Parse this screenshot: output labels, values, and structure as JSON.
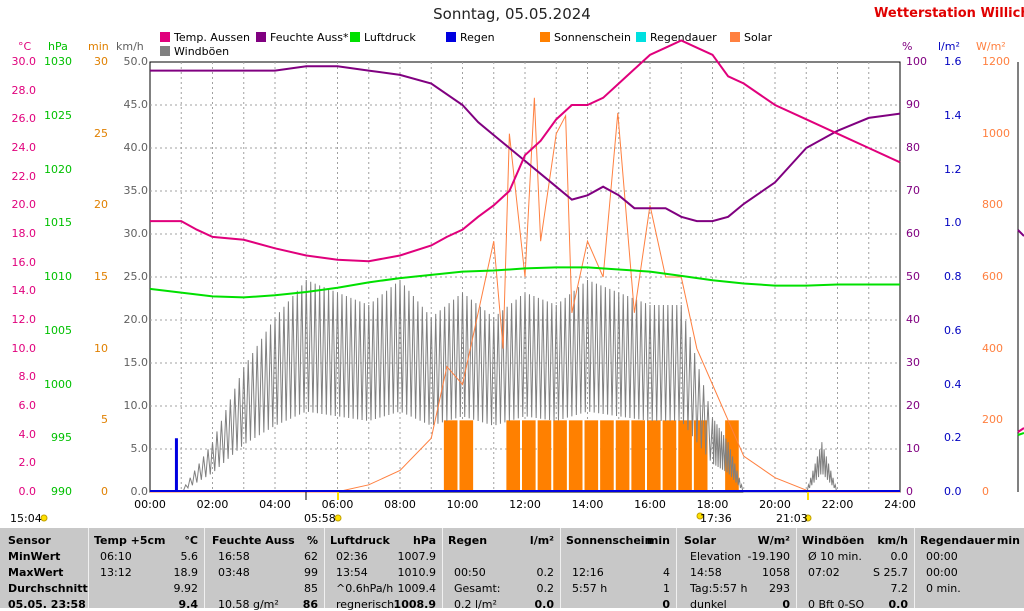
{
  "title": "Sonntag, 05.05.2024",
  "brand": "Wetterstation Willich",
  "legend": [
    {
      "label": "Temp. Aussen",
      "color": "#e0007c"
    },
    {
      "label": "Feuchte Auss*",
      "color": "#800080"
    },
    {
      "label": "Luftdruck",
      "color": "#00e000"
    },
    {
      "label": "Regen",
      "color": "#0000e0"
    },
    {
      "label": "Sonnenschein",
      "color": "#ff8000"
    },
    {
      "label": "Regendauer",
      "color": "#00e0e0"
    },
    {
      "label": "Solar",
      "color": "#ff8040"
    },
    {
      "label": "Windböen",
      "color": "#808080"
    }
  ],
  "axis_units": {
    "temp": "°C",
    "pressure": "hPa",
    "minutes": "min",
    "wind": "km/h",
    "humidity": "%",
    "rain": "l/m²",
    "solar": "W/m²"
  },
  "axis_ticks": {
    "temp": [
      "30.0",
      "28.0",
      "26.0",
      "24.0",
      "22.0",
      "20.0",
      "18.0",
      "16.0",
      "14.0",
      "12.0",
      "10.0",
      "8.0",
      "6.0",
      "4.0",
      "2.0",
      "0.0"
    ],
    "pressure": [
      "1030",
      "1025",
      "1020",
      "1015",
      "1010",
      "1005",
      "1000",
      "995",
      "990"
    ],
    "minutes": [
      "30",
      "25",
      "20",
      "15",
      "10",
      "5",
      "0"
    ],
    "wind": [
      "50.0",
      "45.0",
      "40.0",
      "35.0",
      "30.0",
      "25.0",
      "20.0",
      "15.0",
      "10.0",
      "5.0",
      "0.0"
    ],
    "humidity": [
      "100",
      "90",
      "80",
      "70",
      "60",
      "50",
      "40",
      "30",
      "20",
      "10",
      "0"
    ],
    "rain": [
      "1.6",
      "1.4",
      "1.2",
      "1.0",
      "0.8",
      "0.6",
      "0.4",
      "0.2",
      "0.0"
    ],
    "solar": [
      "1200",
      "1000",
      "800",
      "600",
      "400",
      "200",
      "0"
    ],
    "time": [
      "00:00",
      "02:00",
      "04:00",
      "06:00",
      "08:00",
      "10:00",
      "12:00",
      "14:00",
      "16:00",
      "18:00",
      "20:00",
      "22:00",
      "24:00"
    ]
  },
  "sun_events": {
    "prev_day_time": "15:04",
    "sunrise": "05:58",
    "noon_marker": "17:36",
    "sunset": "21:03"
  },
  "colors": {
    "temp": "#e0007c",
    "humidity": "#800080",
    "pressure": "#00e000",
    "rain": "#0000e0",
    "sunshine": "#ff8000",
    "raindur": "#00e0e0",
    "solar": "#ff8040",
    "wind": "#808080",
    "grid": "#a0a0a0",
    "temp_axis": "#e0007c",
    "pressure_axis": "#00c000",
    "minutes_axis": "#e08000",
    "wind_axis": "#606060",
    "humidity_axis": "#800080",
    "rain_axis": "#0000c0",
    "solar_axis": "#ff8040"
  },
  "chart_data": {
    "type": "line",
    "title": "Sonntag, 05.05.2024",
    "x_unit": "hours",
    "xlim": [
      0,
      24
    ],
    "series": [
      {
        "name": "Temp. Aussen",
        "axis": "temp",
        "ylim": [
          0,
          30
        ],
        "x": [
          0,
          1,
          1.5,
          2,
          3,
          4,
          5,
          6,
          7,
          8,
          9,
          9.5,
          10,
          10.5,
          11,
          11.5,
          12,
          12.5,
          13,
          13.5,
          14,
          14.5,
          15,
          15.5,
          16,
          16.5,
          17,
          17.5,
          18,
          18.5,
          19,
          20,
          21,
          22,
          23,
          24
        ],
        "y": [
          18.9,
          18.9,
          18.3,
          17.8,
          17.6,
          17.0,
          16.5,
          16.2,
          16.1,
          16.5,
          17.2,
          17.8,
          18.3,
          19.2,
          20.0,
          21.0,
          23.5,
          24.5,
          26.0,
          27.0,
          27.0,
          27.5,
          28.5,
          29.5,
          30.5,
          31.0,
          31.5,
          31.0,
          30.5,
          29.0,
          28.5,
          27.0,
          26.0,
          25.0,
          24.0,
          23.0
        ]
      },
      {
        "name": "Feuchte Auss*",
        "axis": "humidity",
        "ylim": [
          0,
          100
        ],
        "x": [
          0,
          1,
          2,
          3,
          4,
          5,
          6,
          7,
          8,
          9,
          10,
          10.5,
          11,
          11.5,
          12,
          12.5,
          13,
          13.5,
          14,
          14.5,
          15,
          15.5,
          16,
          16.5,
          17,
          17.5,
          18,
          18.5,
          19,
          20,
          21,
          22,
          23,
          24
        ],
        "y": [
          98,
          98,
          98,
          98,
          98,
          99,
          99,
          98,
          97,
          95,
          90,
          86,
          83,
          80,
          77,
          74,
          71,
          68,
          69,
          71,
          69,
          66,
          66,
          66,
          64,
          63,
          63,
          64,
          67,
          72,
          80,
          84,
          87,
          88
        ]
      },
      {
        "name": "Luftdruck",
        "axis": "pressure",
        "ylim": [
          990,
          1030
        ],
        "x": [
          0,
          2,
          3,
          4,
          5,
          6,
          7,
          8,
          9,
          10,
          11,
          12,
          13,
          14,
          15,
          16,
          17,
          18,
          19,
          20,
          21,
          22,
          23,
          24
        ],
        "y": [
          1008.9,
          1008.2,
          1008.1,
          1008.3,
          1008.6,
          1009.0,
          1009.5,
          1009.9,
          1010.2,
          1010.5,
          1010.6,
          1010.8,
          1010.9,
          1010.9,
          1010.7,
          1010.5,
          1010.1,
          1009.7,
          1009.4,
          1009.2,
          1009.2,
          1009.3,
          1009.3,
          1009.3
        ]
      },
      {
        "name": "Windböen",
        "axis": "wind",
        "ylim": [
          0,
          50
        ],
        "x": [
          0,
          1,
          2,
          3,
          4,
          5,
          6,
          7,
          8,
          9,
          10,
          11,
          12,
          13,
          14,
          15,
          16,
          17,
          18,
          18.5,
          19,
          20,
          21,
          21.5,
          22,
          23,
          24
        ],
        "y": [
          0,
          0,
          4,
          10,
          14,
          17,
          16,
          15,
          17,
          14,
          16,
          14,
          16,
          15,
          17,
          16,
          15,
          15,
          6,
          4,
          0,
          0,
          0,
          4,
          0,
          0,
          0
        ]
      },
      {
        "name": "Solar",
        "axis": "solar",
        "ylim": [
          0,
          1200
        ],
        "x": [
          0,
          5.97,
          7,
          8,
          9,
          9.5,
          10,
          10.5,
          11,
          11.3,
          11.5,
          12,
          12.3,
          12.5,
          13,
          13.3,
          13.5,
          14,
          14.5,
          14.97,
          15.5,
          16,
          16.5,
          17,
          17.5,
          18,
          18.5,
          19,
          20,
          21,
          21.05,
          24
        ],
        "y": [
          0,
          0,
          20,
          60,
          150,
          350,
          300,
          500,
          700,
          400,
          1000,
          600,
          1100,
          700,
          1000,
          1050,
          500,
          700,
          600,
          1058,
          500,
          800,
          600,
          600,
          400,
          300,
          200,
          100,
          40,
          5,
          0,
          0
        ]
      },
      {
        "name": "Regen",
        "axis": "rain",
        "ylim": [
          0,
          1.6
        ],
        "x": [
          0.83
        ],
        "y": [
          0.2
        ]
      },
      {
        "name": "Sonnenschein",
        "axis": "minutes",
        "ylim": [
          0,
          30
        ],
        "x": [
          9.5,
          10,
          11.5,
          12,
          12.5,
          13,
          13.5,
          14,
          14.5,
          15,
          15.5,
          16,
          16.5,
          17,
          17.5,
          18.5
        ],
        "y": [
          5,
          5,
          5,
          5,
          5,
          5,
          5,
          5,
          5,
          5,
          5,
          5,
          5,
          5,
          5,
          5
        ]
      },
      {
        "name": "Regendauer",
        "axis": "minutes",
        "ylim": [
          0,
          30
        ],
        "x": [
          0,
          24
        ],
        "y": [
          0,
          0
        ]
      }
    ],
    "ylabel": "°C",
    "xlabel": "",
    "grid": true,
    "legend_position": "top"
  },
  "table": {
    "headers": [
      {
        "label": "Sensor",
        "unit": ""
      },
      {
        "label": "Temp +5cm",
        "unit": "°C"
      },
      {
        "label": "Feuchte Auss",
        "unit": "%"
      },
      {
        "label": "Luftdruck",
        "unit": "hPa"
      },
      {
        "label": "Regen",
        "unit": "l/m²"
      },
      {
        "label": "Sonnenschein",
        "unit": "min"
      },
      {
        "label": "Solar",
        "unit": "W/m²"
      },
      {
        "label": "Windböen",
        "unit": "km/h"
      },
      {
        "label": "Regendauer",
        "unit": "min"
      }
    ],
    "row_labels": [
      "MinWert",
      "MaxWert",
      "Durchschnitt",
      "05.05. 23:58"
    ],
    "temp": [
      [
        "06:10",
        "5.6"
      ],
      [
        "13:12",
        "18.9"
      ],
      [
        "",
        "9.92"
      ],
      [
        "",
        "9.4"
      ]
    ],
    "humidity": [
      [
        "16:58",
        "62"
      ],
      [
        "03:48",
        "99"
      ],
      [
        "",
        "85"
      ],
      [
        "10.58 g/m²",
        "86"
      ]
    ],
    "pressure": [
      [
        "02:36",
        "1007.9"
      ],
      [
        "13:54",
        "1010.9"
      ],
      [
        "^0.6hPa/h",
        "1009.4"
      ],
      [
        "regnerisch",
        "1008.9"
      ]
    ],
    "rain": [
      [
        "",
        ""
      ],
      [
        "00:50",
        "0.2"
      ],
      [
        "Gesamt:",
        "0.2"
      ],
      [
        "0.2 l/m²",
        "0.0"
      ]
    ],
    "sunshine": [
      [
        "",
        ""
      ],
      [
        "12:16",
        "4"
      ],
      [
        "5:57 h",
        "1"
      ],
      [
        "",
        "0"
      ]
    ],
    "solar": [
      [
        "Elevation",
        "-19.190"
      ],
      [
        "14:58",
        "1058"
      ],
      [
        "Tag:5:57 h",
        "293"
      ],
      [
        "dunkel",
        "0"
      ]
    ],
    "wind": [
      [
        "Ø 10 min.",
        "0.0"
      ],
      [
        "07:02",
        "S 25.7"
      ],
      [
        "",
        "7.2"
      ],
      [
        "0 Bft 0-SO",
        "0.0"
      ]
    ],
    "raindur": [
      [
        "00:00",
        ""
      ],
      [
        "00:00",
        ""
      ],
      [
        "0 min.",
        ""
      ],
      [
        "",
        ""
      ]
    ]
  }
}
